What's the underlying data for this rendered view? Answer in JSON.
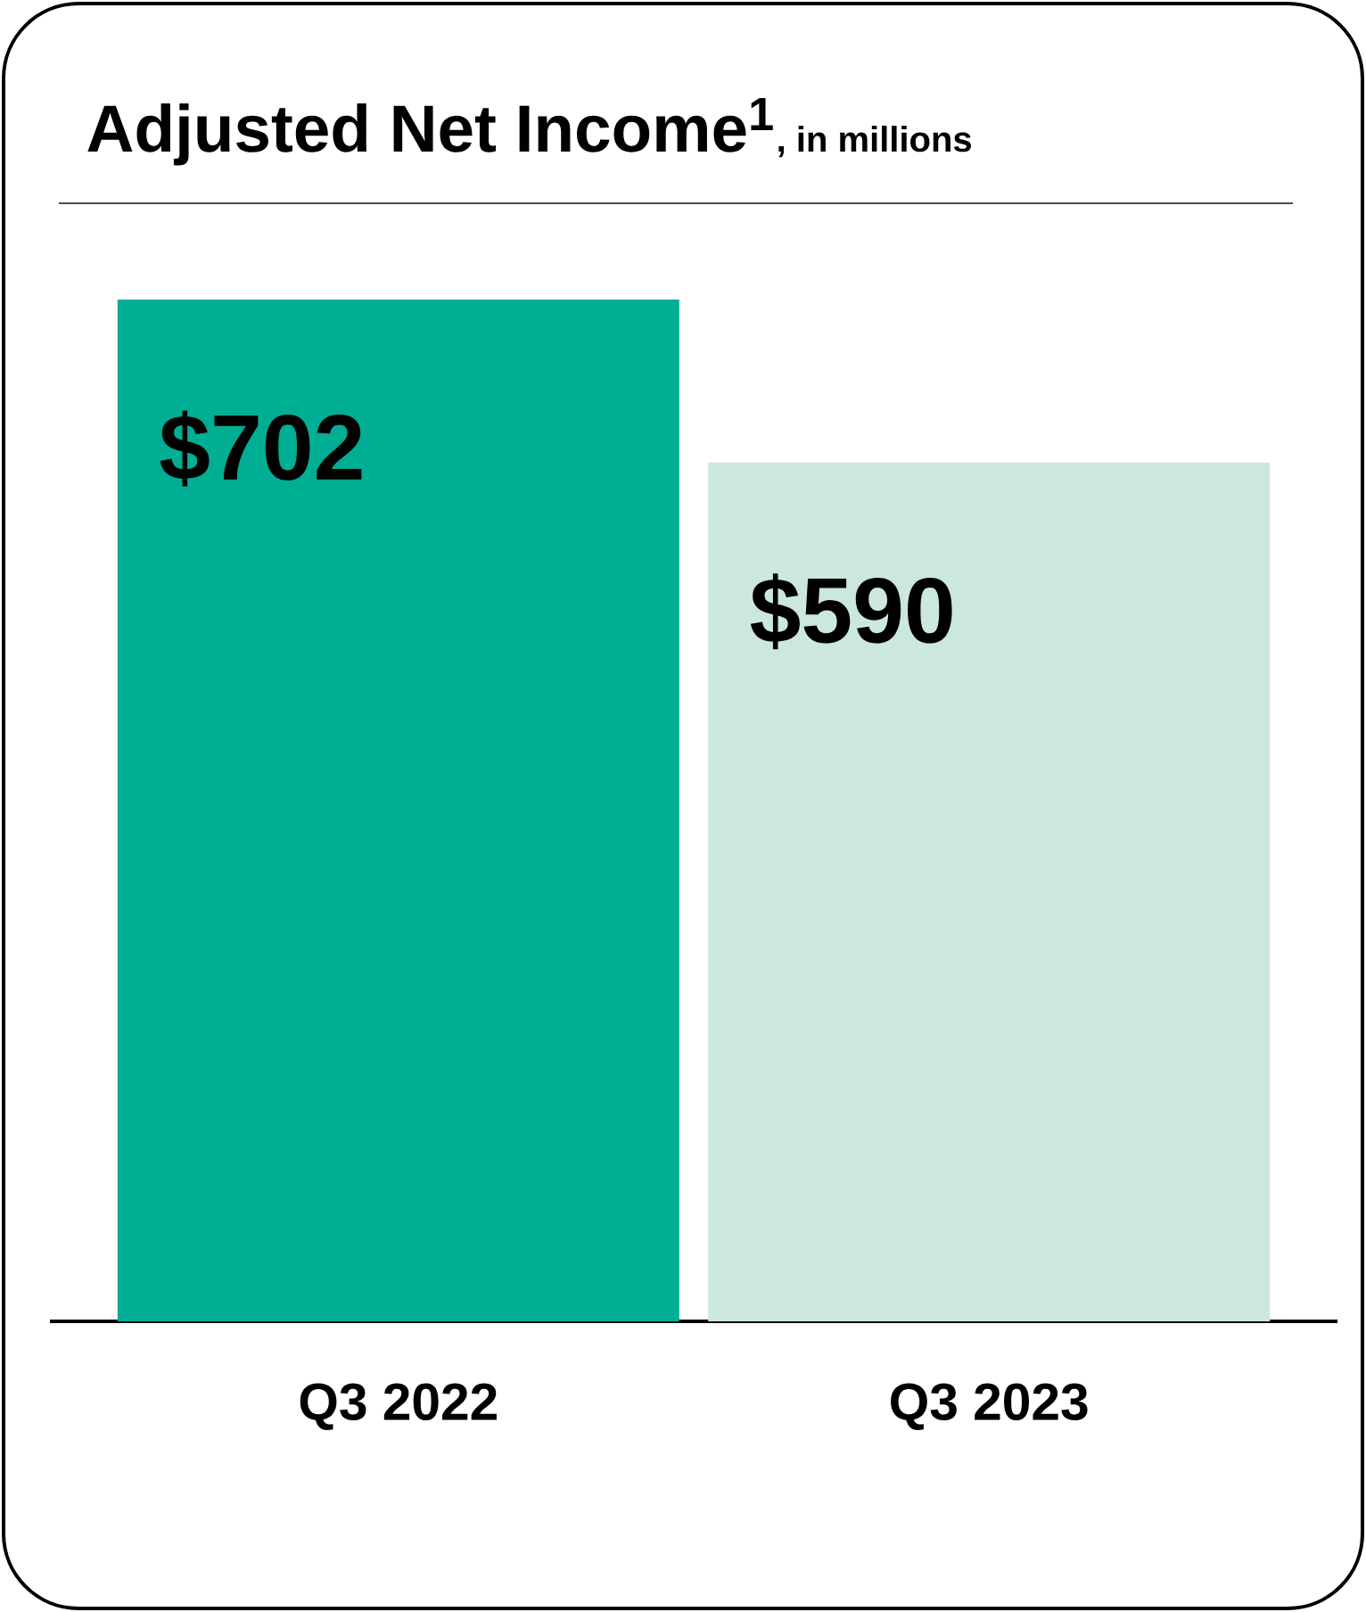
{
  "chart_data": {
    "type": "bar",
    "title": "Adjusted Net Income$^{1}$",
    "subtitle": ", in millions",
    "categories": [
      "Q3 2022",
      "Q3 2023"
    ],
    "values": [
      702,
      590
    ],
    "colors": [
      "#00ae93",
      "#cce6e0"
    ],
    "value_labels": [
      "$702",
      "$590"
    ]
  }
}
